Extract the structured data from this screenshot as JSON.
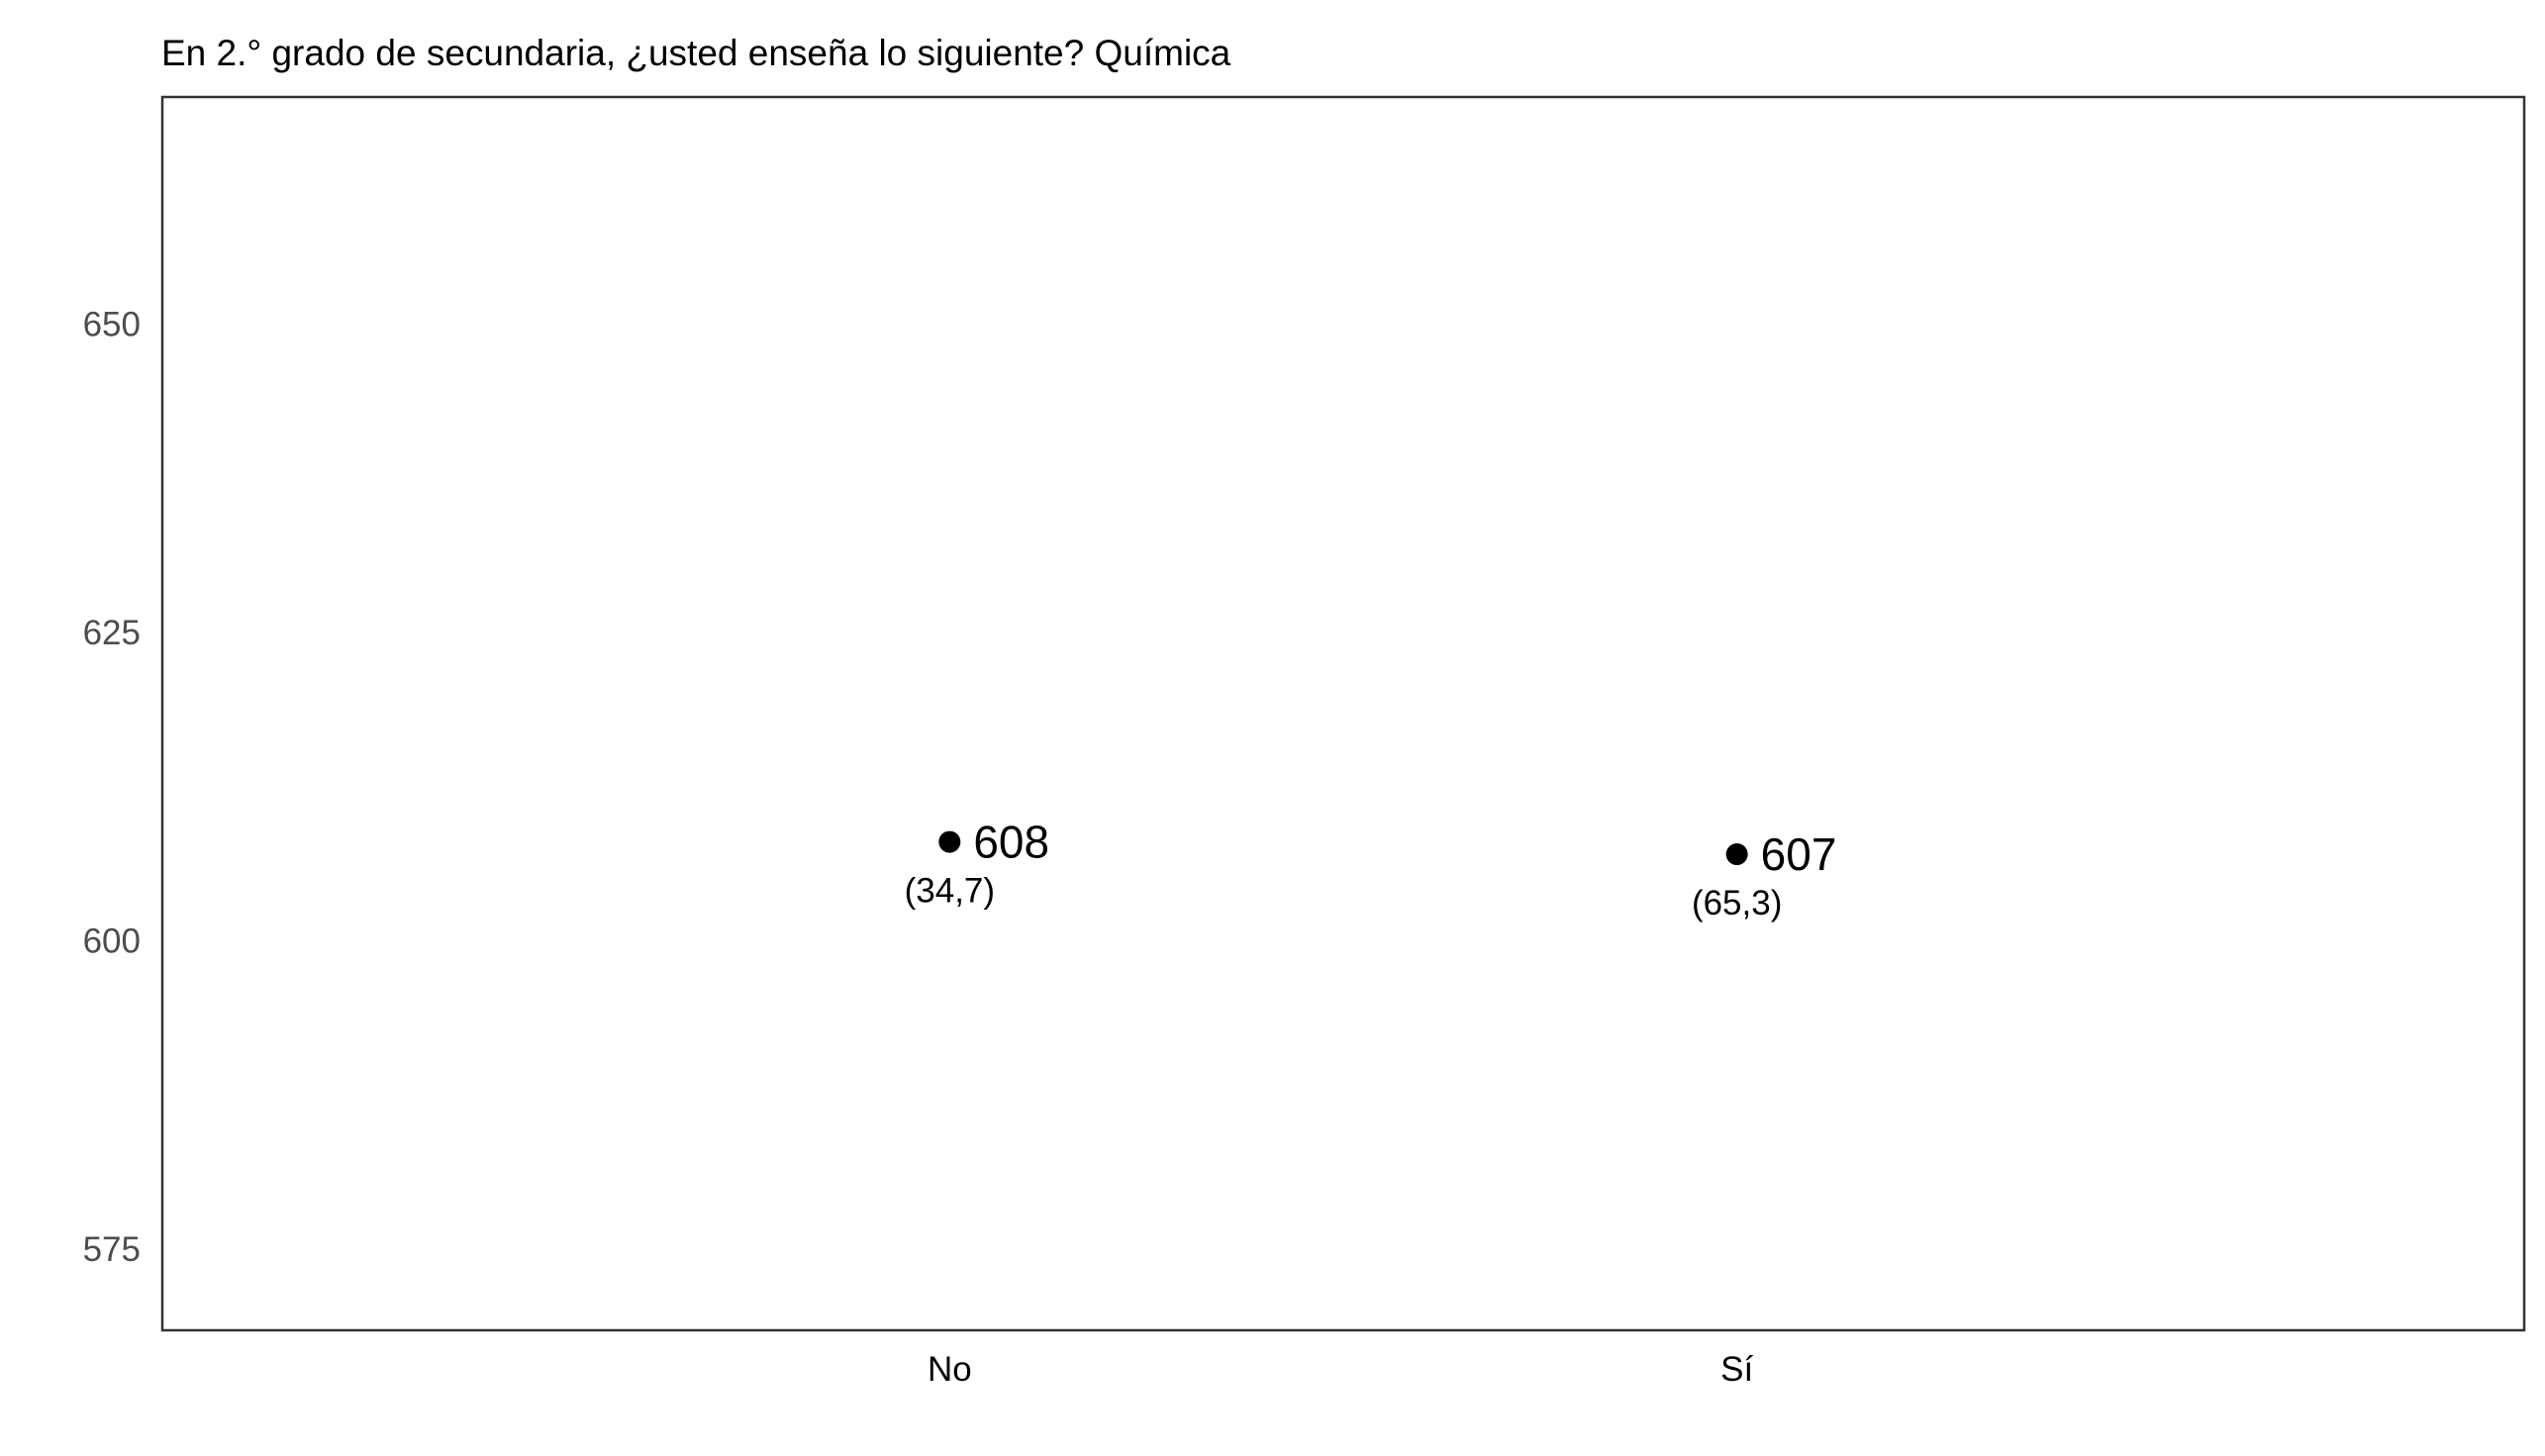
{
  "chart_data": {
    "type": "scatter",
    "title": "En 2.° grado de secundaria, ¿usted enseña lo siguiente? Química",
    "xlabel": "",
    "ylabel": "",
    "categories": [
      "No",
      "Sí"
    ],
    "values": [
      608,
      607
    ],
    "point_labels": [
      "608",
      "607"
    ],
    "percent_labels": [
      "(34,7)",
      "(65,3)"
    ],
    "ylim": [
      568.4,
      668.4
    ],
    "yticks": [
      575,
      600,
      625,
      650
    ],
    "ytick_labels": [
      "575",
      "600",
      "625",
      "650"
    ],
    "grid": false,
    "legend": "none",
    "colors": {
      "point": "#000000",
      "panel_border": "#333333",
      "tick_text": "#4d4d4d"
    }
  }
}
